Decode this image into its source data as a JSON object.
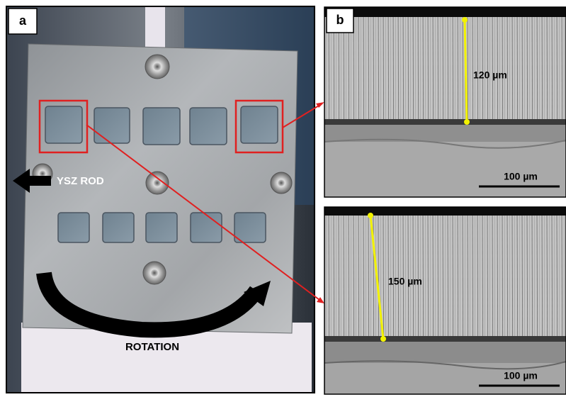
{
  "panel_a": {
    "label": "a",
    "rod_label": "YSZ ROD",
    "rotation_label": "ROTATION"
  },
  "panel_b": {
    "label": "b",
    "images": [
      {
        "thickness_label": "120 µm",
        "scale_bar_label": "100 µm"
      },
      {
        "thickness_label": "150 µm",
        "scale_bar_label": "100 µm"
      }
    ]
  }
}
